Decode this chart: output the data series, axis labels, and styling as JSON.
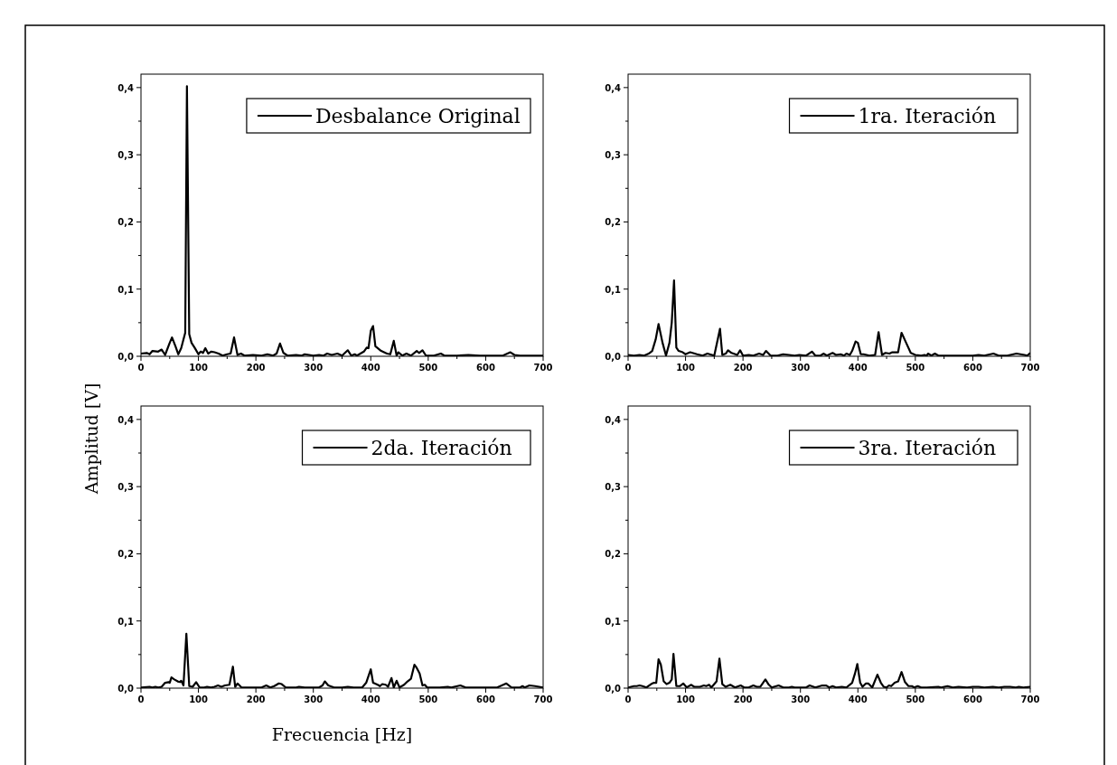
{
  "chart_data": [
    {
      "type": "line",
      "legend": "top right",
      "xlim": [
        0,
        700
      ],
      "ylim": [
        0,
        0.42
      ],
      "xticks": [
        0,
        {
          "value": 50,
          "label": null
        },
        100,
        {
          "value": 150,
          "label": null
        },
        200,
        {
          "value": 250,
          "label": null
        },
        300,
        {
          "value": 350,
          "label": null
        },
        400,
        {
          "value": 450,
          "label": null
        },
        500,
        {
          "value": 550,
          "label": null
        },
        600,
        {
          "value": 650,
          "label": null
        },
        700
      ],
      "yticks": [
        {
          "value": 0,
          "label": "0,0"
        },
        {
          "value": 0.05,
          "label": null
        },
        {
          "value": 0.1,
          "label": "0,1"
        },
        {
          "value": 0.15,
          "label": null
        },
        {
          "value": 0.2,
          "label": "0,2"
        },
        {
          "value": 0.25,
          "label": null
        },
        {
          "value": 0.3,
          "label": "0,3"
        },
        {
          "value": 0.35,
          "label": null
        },
        {
          "value": 0.4,
          "label": "0,4"
        }
      ],
      "series": [
        {
          "name": "Desbalance Original",
          "color": "#000000",
          "x": [
            0,
            10,
            15,
            20,
            30,
            36,
            42,
            50,
            54,
            60,
            65,
            70,
            77,
            80,
            84,
            88,
            94,
            100,
            104,
            108,
            112,
            117,
            122,
            128,
            135,
            142,
            150,
            156,
            162,
            168,
            174,
            180,
            195,
            210,
            220,
            230,
            236,
            242,
            248,
            255,
            270,
            280,
            285,
            300,
            310,
            318,
            324,
            332,
            342,
            350,
            360,
            366,
            372,
            376,
            388,
            393,
            396,
            400,
            404,
            408,
            418,
            428,
            434,
            440,
            445,
            448,
            455,
            462,
            470,
            480,
            484,
            490,
            496,
            510,
            522,
            528,
            550,
            570,
            590,
            615,
            630,
            643,
            650,
            660,
            700
          ],
          "values": [
            0.004,
            0.005,
            0.003,
            0.008,
            0.007,
            0.01,
            0.002,
            0.02,
            0.028,
            0.015,
            0.003,
            0.012,
            0.035,
            0.402,
            0.033,
            0.02,
            0.012,
            0.003,
            0.007,
            0.005,
            0.012,
            0.004,
            0.007,
            0.006,
            0.004,
            0.001,
            0.003,
            0.004,
            0.028,
            0.002,
            0.004,
            0.001,
            0.002,
            0.001,
            0.003,
            0.001,
            0.004,
            0.019,
            0.005,
            0.001,
            0.002,
            0.001,
            0.003,
            0.001,
            0.002,
            0.001,
            0.004,
            0.002,
            0.004,
            0.001,
            0.009,
            0.001,
            0.003,
            0.001,
            0.007,
            0.013,
            0.012,
            0.038,
            0.045,
            0.015,
            0.008,
            0.004,
            0.003,
            0.023,
            0.001,
            0.006,
            0.001,
            0.004,
            0.001,
            0.008,
            0.005,
            0.009,
            0.001,
            0.001,
            0.004,
            0.001,
            0.001,
            0.002,
            0.001,
            0.001,
            0.001,
            0.006,
            0.002,
            0.001,
            0.001
          ]
        }
      ]
    },
    {
      "type": "line",
      "legend": "top right",
      "xlim": [
        0,
        700
      ],
      "ylim": [
        0,
        0.42
      ],
      "xticks": [
        0,
        {
          "value": 50,
          "label": null
        },
        100,
        {
          "value": 150,
          "label": null
        },
        200,
        {
          "value": 250,
          "label": null
        },
        300,
        {
          "value": 350,
          "label": null
        },
        400,
        {
          "value": 450,
          "label": null
        },
        500,
        {
          "value": 550,
          "label": null
        },
        600,
        {
          "value": 650,
          "label": null
        },
        700
      ],
      "yticks": [
        {
          "value": 0,
          "label": "0,0"
        },
        {
          "value": 0.05,
          "label": null
        },
        {
          "value": 0.1,
          "label": "0,1"
        },
        {
          "value": 0.15,
          "label": null
        },
        {
          "value": 0.2,
          "label": "0,2"
        },
        {
          "value": 0.25,
          "label": null
        },
        {
          "value": 0.3,
          "label": "0,3"
        },
        {
          "value": 0.35,
          "label": null
        },
        {
          "value": 0.4,
          "label": "0,4"
        }
      ],
      "series": [
        {
          "name": "1ra. Iteración",
          "color": "#000000",
          "x": [
            0,
            10,
            20,
            28,
            36,
            42,
            48,
            53,
            60,
            66,
            72,
            76,
            80,
            84,
            88,
            95,
            100,
            108,
            120,
            130,
            138,
            150,
            160,
            164,
            170,
            174,
            180,
            190,
            195,
            200,
            210,
            218,
            228,
            235,
            240,
            248,
            260,
            270,
            280,
            290,
            298,
            310,
            320,
            326,
            335,
            340,
            346,
            356,
            362,
            370,
            376,
            380,
            386,
            390,
            396,
            400,
            405,
            410,
            420,
            430,
            436,
            442,
            448,
            455,
            460,
            470,
            476,
            484,
            492,
            500,
            510,
            516,
            520,
            522,
            528,
            534,
            540,
            560,
            600,
            610,
            620,
            636,
            645,
            660,
            676,
            690,
            695,
            700
          ],
          "values": [
            0.002,
            0.001,
            0.002,
            0.001,
            0.004,
            0.008,
            0.025,
            0.048,
            0.02,
            0.001,
            0.02,
            0.05,
            0.113,
            0.013,
            0.008,
            0.006,
            0.003,
            0.006,
            0.003,
            0.001,
            0.004,
            0.001,
            0.041,
            0.002,
            0.004,
            0.009,
            0.005,
            0.002,
            0.009,
            0.001,
            0.002,
            0.001,
            0.004,
            0.002,
            0.008,
            0.001,
            0.001,
            0.003,
            0.002,
            0.001,
            0.002,
            0.001,
            0.007,
            0.001,
            0.001,
            0.004,
            0.001,
            0.005,
            0.002,
            0.003,
            0.001,
            0.004,
            0.002,
            0.008,
            0.022,
            0.02,
            0.003,
            0.003,
            0.001,
            0.002,
            0.036,
            0.002,
            0.005,
            0.004,
            0.006,
            0.006,
            0.035,
            0.02,
            0.005,
            0.002,
            0.001,
            0.002,
            0.001,
            0.004,
            0.001,
            0.004,
            0.001,
            0.001,
            0.001,
            0.002,
            0.001,
            0.004,
            0.001,
            0.001,
            0.004,
            0.002,
            0.001,
            0.005
          ]
        }
      ]
    },
    {
      "type": "line",
      "legend": "top right",
      "xlim": [
        0,
        700
      ],
      "ylim": [
        0,
        0.42
      ],
      "xlabel": "Frecuencia [Hz]",
      "ylabel": "Amplitud [V]",
      "xticks": [
        0,
        {
          "value": 50,
          "label": null
        },
        100,
        {
          "value": 150,
          "label": null
        },
        200,
        {
          "value": 250,
          "label": null
        },
        300,
        {
          "value": 350,
          "label": null
        },
        400,
        {
          "value": 450,
          "label": null
        },
        500,
        {
          "value": 550,
          "label": null
        },
        600,
        {
          "value": 650,
          "label": null
        },
        700
      ],
      "yticks": [
        {
          "value": 0,
          "label": "0,0"
        },
        {
          "value": 0.05,
          "label": null
        },
        {
          "value": 0.1,
          "label": "0,1"
        },
        {
          "value": 0.15,
          "label": null
        },
        {
          "value": 0.2,
          "label": "0,2"
        },
        {
          "value": 0.25,
          "label": null
        },
        {
          "value": 0.3,
          "label": "0,3"
        },
        {
          "value": 0.35,
          "label": null
        },
        {
          "value": 0.4,
          "label": "0,4"
        }
      ],
      "series": [
        {
          "name": "2da. Iteración",
          "color": "#000000",
          "x": [
            0,
            15,
            20,
            25,
            30,
            36,
            42,
            48,
            50,
            53,
            58,
            64,
            68,
            70,
            74,
            79,
            84,
            90,
            96,
            102,
            110,
            115,
            122,
            128,
            134,
            140,
            146,
            154,
            160,
            164,
            168,
            175,
            190,
            210,
            218,
            225,
            232,
            240,
            245,
            252,
            270,
            275,
            285,
            300,
            310,
            316,
            320,
            326,
            336,
            350,
            360,
            370,
            385,
            392,
            400,
            404,
            412,
            416,
            420,
            426,
            430,
            436,
            440,
            445,
            450,
            458,
            464,
            470,
            476,
            480,
            485,
            490,
            494,
            498,
            520,
            534,
            540,
            556,
            565,
            600,
            620,
            636,
            645,
            660,
            664,
            668,
            676,
            686,
            700
          ],
          "values": [
            0.001,
            0.002,
            0.001,
            0.002,
            0.001,
            0.002,
            0.008,
            0.009,
            0.008,
            0.016,
            0.013,
            0.01,
            0.009,
            0.011,
            0.004,
            0.081,
            0.003,
            0.002,
            0.009,
            0.001,
            0.001,
            0.002,
            0.001,
            0.002,
            0.004,
            0.002,
            0.004,
            0.005,
            0.032,
            0.002,
            0.007,
            0.001,
            0.001,
            0.001,
            0.004,
            0.001,
            0.003,
            0.007,
            0.006,
            0.001,
            0.001,
            0.002,
            0.001,
            0.001,
            0.001,
            0.004,
            0.01,
            0.004,
            0.001,
            0.001,
            0.002,
            0.001,
            0.001,
            0.008,
            0.028,
            0.008,
            0.005,
            0.003,
            0.006,
            0.005,
            0.002,
            0.015,
            0.001,
            0.011,
            0.001,
            0.005,
            0.01,
            0.014,
            0.035,
            0.03,
            0.022,
            0.004,
            0.005,
            0.001,
            0.001,
            0.002,
            0.001,
            0.004,
            0.001,
            0.001,
            0.001,
            0.007,
            0.001,
            0.001,
            0.003,
            0.001,
            0.004,
            0.003,
            0.001
          ]
        }
      ]
    },
    {
      "type": "line",
      "legend": "top right",
      "xlim": [
        0,
        700
      ],
      "ylim": [
        0,
        0.42
      ],
      "xticks": [
        0,
        {
          "value": 50,
          "label": null
        },
        100,
        {
          "value": 150,
          "label": null
        },
        200,
        {
          "value": 250,
          "label": null
        },
        300,
        {
          "value": 350,
          "label": null
        },
        400,
        {
          "value": 450,
          "label": null
        },
        500,
        {
          "value": 550,
          "label": null
        },
        600,
        {
          "value": 650,
          "label": null
        },
        700
      ],
      "yticks": [
        {
          "value": 0,
          "label": "0,0"
        },
        {
          "value": 0.05,
          "label": null
        },
        {
          "value": 0.1,
          "label": "0,1"
        },
        {
          "value": 0.15,
          "label": null
        },
        {
          "value": 0.2,
          "label": "0,2"
        },
        {
          "value": 0.25,
          "label": null
        },
        {
          "value": 0.3,
          "label": "0,3"
        },
        {
          "value": 0.35,
          "label": null
        },
        {
          "value": 0.4,
          "label": "0,4"
        }
      ],
      "series": [
        {
          "name": "3ra. Iteración",
          "color": "#000000",
          "x": [
            0,
            10,
            15,
            20,
            25,
            32,
            40,
            45,
            49,
            53,
            57,
            62,
            67,
            72,
            76,
            79,
            84,
            90,
            96,
            102,
            110,
            115,
            125,
            132,
            136,
            141,
            145,
            154,
            159,
            164,
            170,
            178,
            186,
            196,
            202,
            210,
            218,
            224,
            230,
            239,
            245,
            250,
            262,
            270,
            280,
            285,
            290,
            310,
            316,
            326,
            338,
            345,
            350,
            356,
            362,
            372,
            380,
            390,
            395,
            399,
            404,
            408,
            414,
            418,
            425,
            434,
            440,
            445,
            450,
            454,
            458,
            464,
            470,
            476,
            482,
            488,
            494,
            498,
            504,
            510,
            520,
            540,
            545,
            556,
            565,
            575,
            590,
            600,
            610,
            620,
            635,
            645,
            655,
            665,
            675,
            680,
            688,
            700
          ],
          "values": [
            0.001,
            0.003,
            0.003,
            0.004,
            0.003,
            0.001,
            0.006,
            0.008,
            0.008,
            0.043,
            0.035,
            0.01,
            0.006,
            0.008,
            0.013,
            0.051,
            0.003,
            0.003,
            0.007,
            0.001,
            0.005,
            0.002,
            0.002,
            0.004,
            0.003,
            0.005,
            0.001,
            0.01,
            0.044,
            0.006,
            0.002,
            0.005,
            0.001,
            0.004,
            0.001,
            0.001,
            0.004,
            0.002,
            0.002,
            0.013,
            0.005,
            0.001,
            0.004,
            0.001,
            0.001,
            0.002,
            0.001,
            0.001,
            0.004,
            0.001,
            0.004,
            0.004,
            0.001,
            0.003,
            0.001,
            0.002,
            0.001,
            0.008,
            0.022,
            0.036,
            0.008,
            0.002,
            0.007,
            0.007,
            0.001,
            0.02,
            0.008,
            0.002,
            0.001,
            0.004,
            0.003,
            0.008,
            0.01,
            0.024,
            0.009,
            0.003,
            0.003,
            0.001,
            0.003,
            0.001,
            0.001,
            0.002,
            0.001,
            0.003,
            0.001,
            0.002,
            0.001,
            0.002,
            0.002,
            0.001,
            0.002,
            0.001,
            0.002,
            0.002,
            0.001,
            0.002,
            0.001,
            0.002
          ]
        }
      ]
    }
  ]
}
